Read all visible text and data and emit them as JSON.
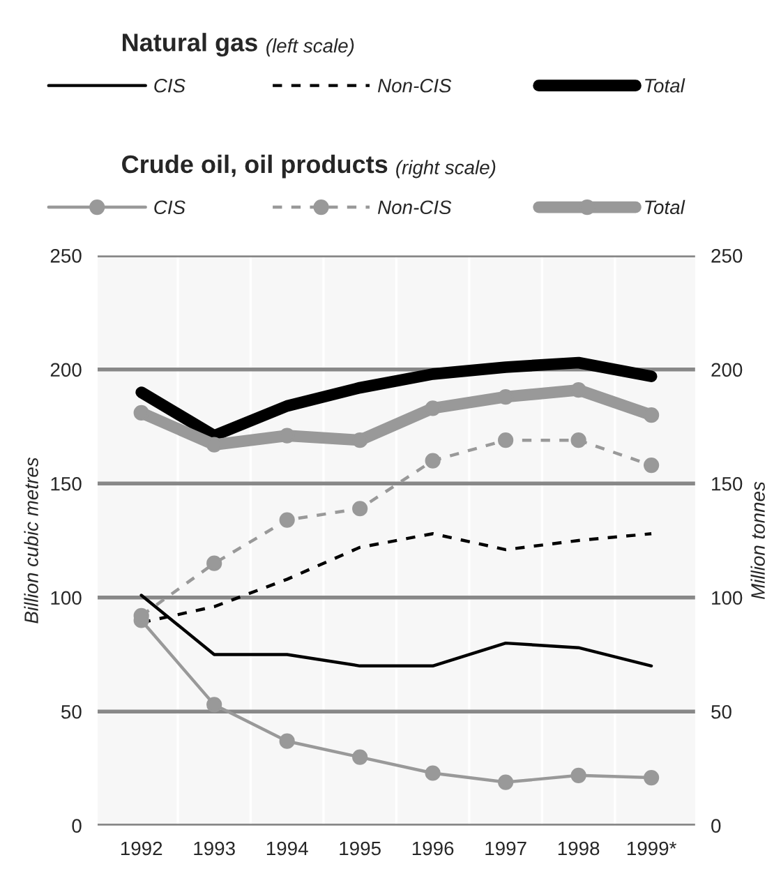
{
  "chart_data": {
    "type": "line",
    "categories": [
      "1992",
      "1993",
      "1994",
      "1995",
      "1996",
      "1997",
      "1998",
      "1999*"
    ],
    "ylabel": "Billion cubic metres",
    "y2label": "Million tonnes",
    "ylim": [
      0,
      250
    ],
    "yticks": [
      0,
      50,
      100,
      150,
      200,
      250
    ],
    "y2lim": [
      0,
      250
    ],
    "y2ticks": [
      0,
      50,
      100,
      150,
      200,
      250
    ],
    "grid": "y",
    "legend": "top",
    "annotations": [
      "Natural gas",
      "(left scale)",
      "Crude oil, oil products",
      "(right scale)"
    ],
    "series": [
      {
        "name": "CIS",
        "color": "#000000",
        "line_style": "solid",
        "marker": "none",
        "values": [
          101,
          75,
          75,
          70,
          70,
          80,
          78,
          70
        ]
      },
      {
        "name": "Non-CIS",
        "color": "#000000",
        "line_style": "dashed",
        "marker": "none",
        "values": [
          89,
          96,
          108,
          122,
          128,
          121,
          125,
          128
        ]
      },
      {
        "name": "Total",
        "color": "#000000",
        "line_style": "solid",
        "marker": "none",
        "values": [
          190,
          171,
          184,
          192,
          198,
          201,
          203,
          197
        ]
      },
      {
        "name": "CIS",
        "color": "#999999",
        "line_style": "solid",
        "marker": "circle",
        "axis": "y2",
        "values": [
          90,
          53,
          37,
          30,
          23,
          19,
          22,
          21
        ]
      },
      {
        "name": "Non-CIS",
        "color": "#999999",
        "line_style": "dashed",
        "marker": "circle",
        "axis": "y2",
        "values": [
          92,
          115,
          134,
          139,
          160,
          169,
          169,
          158
        ]
      },
      {
        "name": "Total",
        "color": "#999999",
        "line_style": "solid",
        "marker": "circle",
        "axis": "y2",
        "values": [
          181,
          167,
          171,
          169,
          183,
          188,
          191,
          180
        ]
      }
    ]
  }
}
